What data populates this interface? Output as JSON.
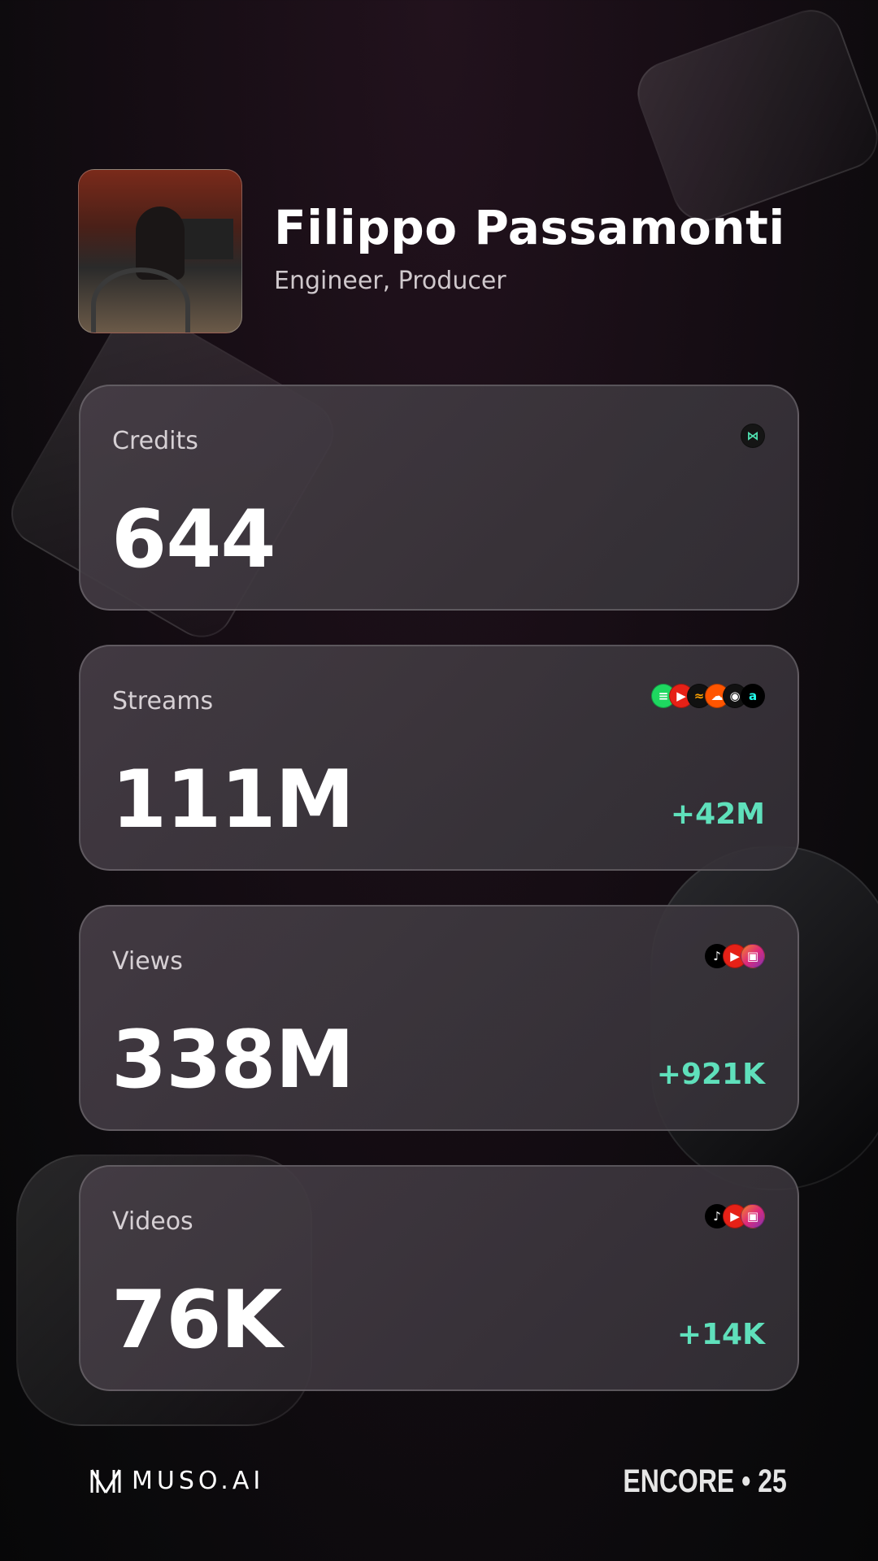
{
  "profile": {
    "name": "Filippo Passamonti",
    "roles": "Engineer, Producer"
  },
  "cards": [
    {
      "label": "Credits",
      "value": "644",
      "delta": "",
      "icons": [
        "muso-ai-icon"
      ]
    },
    {
      "label": "Streams",
      "value": "111M",
      "delta": "+42M",
      "icons": [
        "spotify-icon",
        "youtube-icon",
        "audiomack-icon",
        "soundcloud-icon",
        "disc-icon",
        "amazon-music-icon"
      ]
    },
    {
      "label": "Views",
      "value": "338M",
      "delta": "+921K",
      "icons": [
        "tiktok-icon",
        "youtube-shorts-icon",
        "instagram-reels-icon"
      ]
    },
    {
      "label": "Videos",
      "value": "76K",
      "delta": "+14K",
      "icons": [
        "tiktok-icon",
        "youtube-shorts-icon",
        "instagram-reels-icon"
      ]
    }
  ],
  "footer": {
    "brand": "MUSO.AI",
    "event": "ENCORE • 25"
  },
  "colors": {
    "accent": "#5fe0bb",
    "card": "#3d363d"
  }
}
